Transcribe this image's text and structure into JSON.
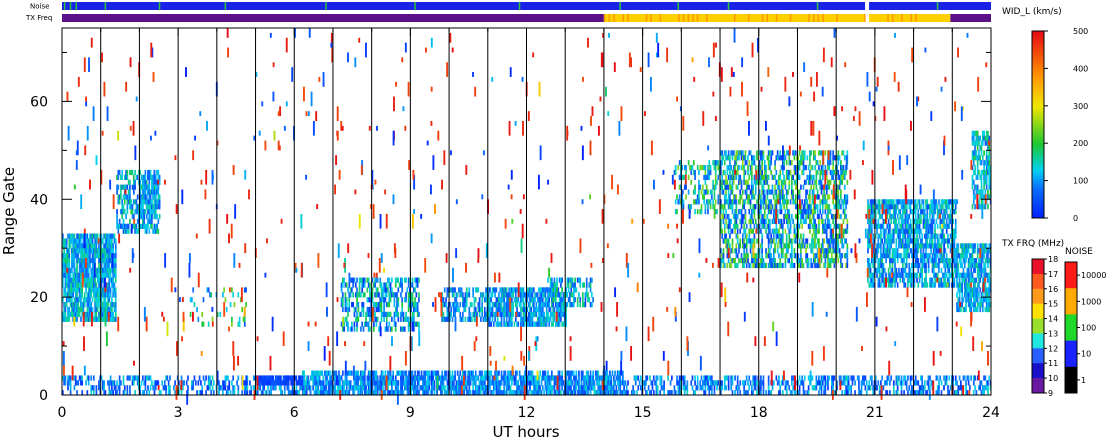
{
  "chart_data": {
    "type": "heatmap",
    "xlabel": "UT hours",
    "ylabel": "Range Gate",
    "xlim": [
      0,
      24
    ],
    "ylim": [
      0,
      75
    ],
    "x_ticks": [
      0,
      3,
      6,
      9,
      12,
      15,
      18,
      21,
      24
    ],
    "y_ticks": [
      0,
      20,
      40,
      60
    ],
    "x_tick_labels": [
      "0",
      "3",
      "6",
      "9",
      "12",
      "15",
      "18",
      "21",
      "24"
    ],
    "y_tick_labels": [
      "0",
      "20",
      "40",
      "60"
    ],
    "vertical_lines_hours": [
      1,
      2,
      3,
      4,
      5,
      6,
      7,
      8,
      9,
      10,
      11,
      12,
      13,
      14,
      15,
      16,
      17,
      18,
      19,
      20,
      21,
      22,
      23
    ],
    "status_bars": [
      {
        "label": "Noise",
        "segments": [
          {
            "start": 0,
            "end": 20.75,
            "color": "#1a22e8"
          },
          {
            "start": 20.75,
            "end": 20.85,
            "color": "#ffffff"
          },
          {
            "start": 20.85,
            "end": 24,
            "color": "#1a22e8"
          }
        ],
        "accent_hours": [
          0.05,
          0.2,
          0.35,
          1.1,
          2.5,
          4.2,
          6.8,
          9.1,
          11.8,
          14.4,
          15.9,
          17.2,
          19.5,
          22.6
        ]
      },
      {
        "label": "TX Freq",
        "segments": [
          {
            "start": 0,
            "end": 14.0,
            "color": "#5a1087"
          },
          {
            "start": 14.0,
            "end": 20.75,
            "color": "#ffd000"
          },
          {
            "start": 20.75,
            "end": 20.85,
            "color": "#ffffff"
          },
          {
            "start": 20.85,
            "end": 22.95,
            "color": "#ffd000"
          },
          {
            "start": 22.95,
            "end": 24,
            "color": "#5a1087"
          }
        ]
      }
    ],
    "regions": [
      {
        "x0": 0.0,
        "x1": 1.4,
        "y0": 15,
        "y1": 33,
        "density": 0.85,
        "vmin": 60,
        "vmax": 180
      },
      {
        "x0": 1.4,
        "x1": 2.5,
        "y0": 33,
        "y1": 46,
        "density": 0.55,
        "vmin": 40,
        "vmax": 200
      },
      {
        "x0": 2.0,
        "x1": 2.5,
        "y0": 36,
        "y1": 45,
        "density": 0.6,
        "vmin": 50,
        "vmax": 160
      },
      {
        "x0": 3.3,
        "x1": 4.8,
        "y0": 14,
        "y1": 22,
        "density": 0.12,
        "vmin": 50,
        "vmax": 250
      },
      {
        "x0": 7.2,
        "x1": 9.2,
        "y0": 13,
        "y1": 24,
        "density": 0.5,
        "vmin": 20,
        "vmax": 200
      },
      {
        "x0": 9.8,
        "x1": 11.0,
        "y0": 15,
        "y1": 22,
        "density": 0.6,
        "vmin": 40,
        "vmax": 170
      },
      {
        "x0": 11.0,
        "x1": 13.0,
        "y0": 14,
        "y1": 22,
        "density": 0.75,
        "vmin": 40,
        "vmax": 170
      },
      {
        "x0": 12.5,
        "x1": 13.7,
        "y0": 18,
        "y1": 24,
        "density": 0.45,
        "vmin": 40,
        "vmax": 200
      },
      {
        "x0": 15.8,
        "x1": 17.0,
        "y0": 37,
        "y1": 48,
        "density": 0.35,
        "vmin": 40,
        "vmax": 250
      },
      {
        "x0": 17.0,
        "x1": 20.3,
        "y0": 26,
        "y1": 50,
        "density": 0.55,
        "vmin": 20,
        "vmax": 260
      },
      {
        "x0": 20.8,
        "x1": 23.1,
        "y0": 22,
        "y1": 40,
        "density": 0.7,
        "vmin": 40,
        "vmax": 180
      },
      {
        "x0": 23.1,
        "x1": 24.0,
        "y0": 17,
        "y1": 31,
        "density": 0.75,
        "vmin": 60,
        "vmax": 180
      },
      {
        "x0": 23.5,
        "x1": 24.0,
        "y0": 38,
        "y1": 54,
        "density": 0.6,
        "vmin": 60,
        "vmax": 200
      },
      {
        "x0": 0.0,
        "x1": 24.0,
        "y0": 0,
        "y1": 4,
        "density": 0.45,
        "vmin": 20,
        "vmax": 150
      },
      {
        "x0": 5.0,
        "x1": 6.2,
        "y0": 2,
        "y1": 4,
        "density": 0.9,
        "vmin": 20,
        "vmax": 60
      },
      {
        "x0": 6.2,
        "x1": 14.5,
        "y0": 0,
        "y1": 5,
        "density": 0.65,
        "vmin": 40,
        "vmax": 150
      }
    ],
    "scatter_noise": {
      "count": 700,
      "value_min": 0,
      "value_max": 500
    },
    "colorbars": [
      {
        "title": "WID_L (km/s)",
        "type": "velocity-width",
        "min": 0,
        "max": 500,
        "tick_labels": [
          "500",
          "400",
          "300",
          "200",
          "100",
          "0"
        ]
      },
      {
        "title": "TX FRQ (MHz)",
        "type": "frequency",
        "tick_labels": [
          "18",
          "17",
          "16",
          "15",
          "14",
          "13",
          "12",
          "11",
          "10",
          "9"
        ],
        "colors": [
          "#e8102a",
          "#ff5a20",
          "#ff9a1a",
          "#ffe000",
          "#9adf2b",
          "#20e8e0",
          "#2a5fff",
          "#1a10c8",
          "#6a1aa0"
        ]
      },
      {
        "title": "NOISE",
        "type": "noise",
        "tick_labels": [
          "10000",
          "1000",
          "100",
          "10",
          "1"
        ],
        "colors": [
          "#ff1a1a",
          "#ffaa00",
          "#20d82a",
          "#1a22ff",
          "#000000"
        ]
      }
    ]
  }
}
